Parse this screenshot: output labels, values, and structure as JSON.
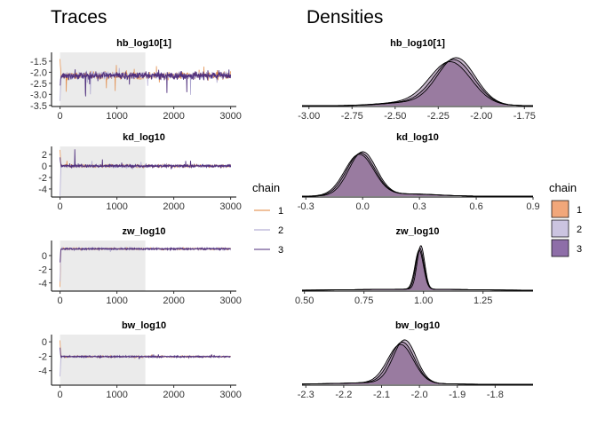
{
  "titles": {
    "traces": "Traces",
    "densities": "Densities"
  },
  "legend": {
    "title": "chain",
    "entries": [
      "1",
      "2",
      "3"
    ],
    "colors": [
      "#e0833a",
      "#a59ecb",
      "#4b2a7a"
    ],
    "fill_colors": [
      "#f1a77a",
      "#cbc4e0",
      "#8e6ea8"
    ]
  },
  "colors": {
    "warmup_shade": "#ebebeb",
    "density_fill": "#85618f",
    "density_line": "#000000"
  },
  "chart_data": [
    {
      "type": "line",
      "name": "trace-hb_log10",
      "title": "hb_log10[1]",
      "xlim": [
        -150,
        3100
      ],
      "ylim": [
        -3.55,
        -1.1
      ],
      "xticks": [
        0,
        1000,
        2000,
        3000
      ],
      "yticks": [
        -1.5,
        -2.0,
        -2.5,
        -3.0,
        -3.5
      ],
      "ytick_labels": [
        "-1.5",
        "-2.0",
        "-2.5",
        "-3.0",
        "-3.5"
      ],
      "warmup": [
        0,
        1500
      ],
      "center": -2.15,
      "noise_sd": 0.08,
      "spike_prob": 0.012,
      "spike_range": [
        -3.4,
        -1.6
      ],
      "start_values": [
        -1.4,
        -3.3,
        -2.6
      ]
    },
    {
      "type": "line",
      "name": "trace-kd_log10",
      "title": "kd_log10",
      "xlim": [
        -150,
        3100
      ],
      "ylim": [
        -5.4,
        3.4
      ],
      "xticks": [
        0,
        1000,
        2000,
        3000
      ],
      "yticks": [
        2,
        0,
        -2,
        -4
      ],
      "ytick_labels": [
        "2",
        "0",
        "-2",
        "-4"
      ],
      "warmup": [
        0,
        1500
      ],
      "center": 0.0,
      "noise_sd": 0.12,
      "spike_prob": 0.006,
      "spike_range": [
        -0.6,
        1.2
      ],
      "start_values": [
        2.8,
        -5.2,
        1.5
      ],
      "spike_at": [
        [
          260,
          2.9
        ]
      ]
    },
    {
      "type": "line",
      "name": "trace-zw_log10",
      "title": "zw_log10",
      "xlim": [
        -150,
        3100
      ],
      "ylim": [
        -5.2,
        2.2
      ],
      "xticks": [
        0,
        1000,
        2000,
        3000
      ],
      "yticks": [
        0,
        -2,
        -4
      ],
      "ytick_labels": [
        "0",
        "-2",
        "-4"
      ],
      "warmup": [
        0,
        1500
      ],
      "center": 0.98,
      "noise_sd": 0.06,
      "spike_prob": 0.006,
      "spike_range": [
        0.5,
        1.5
      ],
      "start_values": [
        -4.6,
        -3.8,
        -1.0
      ]
    },
    {
      "type": "line",
      "name": "trace-bw_log10",
      "title": "bw_log10",
      "xlim": [
        -150,
        3100
      ],
      "ylim": [
        -6.0,
        1.0
      ],
      "xticks": [
        0,
        1000,
        2000,
        3000
      ],
      "yticks": [
        0,
        -2,
        -4
      ],
      "ytick_labels": [
        "0",
        "-2",
        "-4"
      ],
      "warmup": [
        0,
        1500
      ],
      "center": -2.05,
      "noise_sd": 0.05,
      "spike_prob": 0.006,
      "spike_range": [
        -2.4,
        -1.6
      ],
      "start_values": [
        0.2,
        -4.8,
        -0.8
      ]
    },
    {
      "type": "area",
      "name": "density-hb_log10",
      "title": "hb_log10[1]",
      "xlim": [
        -3.04,
        -1.7
      ],
      "xticks": [
        -3.0,
        -2.75,
        -2.5,
        -2.25,
        -2.0,
        -1.75
      ],
      "xtick_labels": [
        "-3.00",
        "-2.75",
        "-2.50",
        "-2.25",
        "-2.00",
        "-1.75"
      ],
      "components": [
        [
          -2.16,
          0.115,
          1.0
        ],
        [
          -2.45,
          0.14,
          0.06
        ]
      ],
      "chains": [
        {
          "shift": 0.0,
          "scale": 1.0
        },
        {
          "shift": 0.015,
          "scale": 0.96
        },
        {
          "shift": -0.02,
          "scale": 1.05
        }
      ]
    },
    {
      "type": "area",
      "name": "density-kd_log10",
      "title": "kd_log10",
      "xlim": [
        -0.32,
        0.9
      ],
      "xticks": [
        -0.3,
        0.0,
        0.3,
        0.6,
        0.9
      ],
      "xtick_labels": [
        "-0.3",
        "0.0",
        "0.3",
        "0.6",
        "0.9"
      ],
      "components": [
        [
          -0.01,
          0.075,
          1.0
        ],
        [
          0.25,
          0.14,
          0.05
        ]
      ],
      "chains": [
        {
          "shift": 0.0,
          "scale": 1.0
        },
        {
          "shift": 0.01,
          "scale": 0.97
        },
        {
          "shift": -0.008,
          "scale": 1.03
        }
      ]
    },
    {
      "type": "area",
      "name": "density-zw_log10",
      "title": "zw_log10",
      "xlim": [
        0.49,
        1.46
      ],
      "xticks": [
        0.5,
        0.75,
        1.0,
        1.25
      ],
      "xtick_labels": [
        "0.50",
        "0.75",
        "1.00",
        "1.25"
      ],
      "components": [
        [
          0.985,
          0.017,
          1.0
        ],
        [
          0.95,
          0.22,
          0.025
        ]
      ],
      "chains": [
        {
          "shift": 0.0,
          "scale": 1.0
        },
        {
          "shift": 0.004,
          "scale": 0.94
        },
        {
          "shift": -0.003,
          "scale": 1.05
        }
      ]
    },
    {
      "type": "area",
      "name": "density-bw_log10",
      "title": "bw_log10",
      "xlim": [
        -2.31,
        -1.7
      ],
      "xticks": [
        -2.3,
        -2.2,
        -2.1,
        -2.0,
        -1.9,
        -1.8
      ],
      "xtick_labels": [
        "-2.3",
        "-2.2",
        "-2.1",
        "-2.0",
        "-1.9",
        "-1.8"
      ],
      "components": [
        [
          -2.045,
          0.032,
          1.0
        ],
        [
          -2.1,
          0.11,
          0.04
        ]
      ],
      "chains": [
        {
          "shift": 0.0,
          "scale": 1.0
        },
        {
          "shift": 0.006,
          "scale": 0.95
        },
        {
          "shift": -0.005,
          "scale": 1.06
        }
      ]
    }
  ]
}
